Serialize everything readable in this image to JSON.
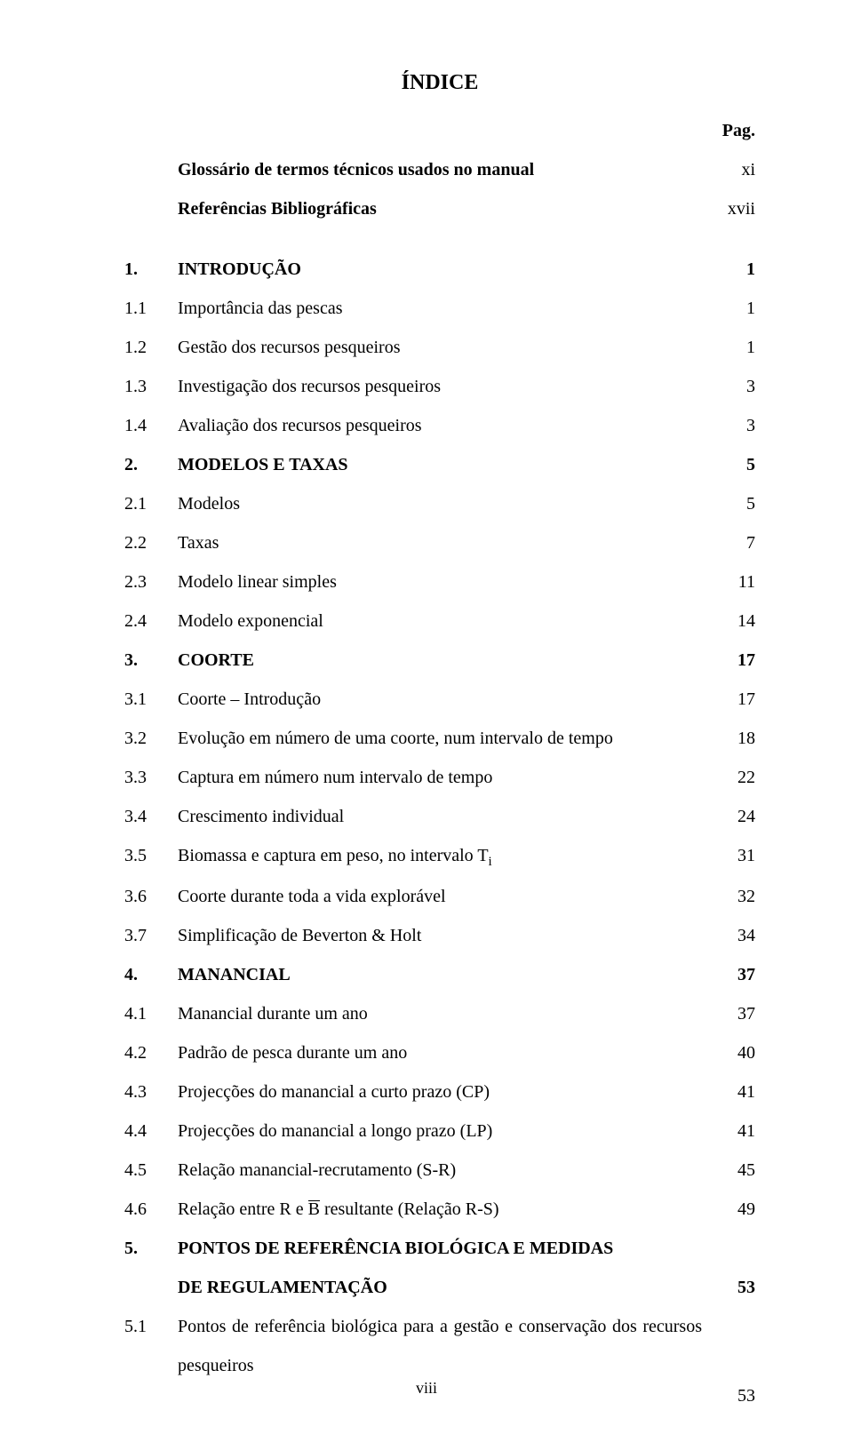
{
  "document": {
    "background_color": "#ffffff",
    "text_color": "#000000",
    "font_family": "Times New Roman",
    "title_fontsize": 24,
    "body_fontsize": 20,
    "line_height": 2.2
  },
  "title": "ÍNDICE",
  "header": {
    "pag_label": "Pag.",
    "rows": [
      {
        "label": "Glossário de termos técnicos usados no manual",
        "page": "xi"
      },
      {
        "label": "Referências Bibliográficas",
        "page": "xvii"
      }
    ]
  },
  "toc": [
    {
      "num": "1.",
      "label": "INTRODUÇÃO",
      "page": "1",
      "bold": true
    },
    {
      "num": "1.1",
      "label": "Importância das pescas",
      "page": "1",
      "bold": false
    },
    {
      "num": "1.2",
      "label": "Gestão dos recursos pesqueiros",
      "page": "1",
      "bold": false
    },
    {
      "num": "1.3",
      "label": "Investigação dos recursos pesqueiros",
      "page": "3",
      "bold": false
    },
    {
      "num": "1.4",
      "label": "Avaliação dos recursos pesqueiros",
      "page": "3",
      "bold": false
    },
    {
      "num": "2.",
      "label": "MODELOS E TAXAS",
      "page": "5",
      "bold": true
    },
    {
      "num": "2.1",
      "label": "Modelos",
      "page": "5",
      "bold": false
    },
    {
      "num": "2.2",
      "label": "Taxas",
      "page": "7",
      "bold": false
    },
    {
      "num": "2.3",
      "label": "Modelo linear simples",
      "page": "11",
      "bold": false
    },
    {
      "num": "2.4",
      "label": "Modelo exponencial",
      "page": "14",
      "bold": false
    },
    {
      "num": "3.",
      "label": "COORTE",
      "page": "17",
      "bold": true
    },
    {
      "num": "3.1",
      "label": "Coorte – Introdução",
      "page": "17",
      "bold": false
    },
    {
      "num": "3.2",
      "label": "Evolução em número de uma coorte, num intervalo de tempo",
      "page": "18",
      "bold": false
    },
    {
      "num": "3.3",
      "label": "Captura em número num intervalo de tempo",
      "page": "22",
      "bold": false
    },
    {
      "num": "3.4",
      "label": "Crescimento individual",
      "page": "24",
      "bold": false
    },
    {
      "num": "3.5",
      "label_pre": "Biomassa e captura em peso, no intervalo T",
      "label_sub": "i",
      "page": "31",
      "bold": false,
      "has_sub": true
    },
    {
      "num": "3.6",
      "label": "Coorte durante toda a vida explorável",
      "page": "32",
      "bold": false
    },
    {
      "num": "3.7",
      "label": "Simplificação de Beverton & Holt",
      "page": "34",
      "bold": false
    },
    {
      "num": "4.",
      "label": "MANANCIAL",
      "page": "37",
      "bold": true
    },
    {
      "num": "4.1",
      "label": "Manancial durante um ano",
      "page": "37",
      "bold": false
    },
    {
      "num": "4.2",
      "label": "Padrão de pesca durante um ano",
      "page": "40",
      "bold": false
    },
    {
      "num": "4.3",
      "label": "Projecções do manancial a curto prazo (CP)",
      "page": "41",
      "bold": false
    },
    {
      "num": "4.4",
      "label": "Projecções do manancial a longo prazo (LP)",
      "page": "41",
      "bold": false
    },
    {
      "num": "4.5",
      "label": "Relação manancial-recrutamento (S-R)",
      "page": "45",
      "bold": false
    },
    {
      "num": "4.6",
      "label_pre": "Relação entre R e ",
      "label_over": "B",
      "label_post": " resultante (Relação R-S)",
      "page": "49",
      "bold": false,
      "has_over": true
    },
    {
      "num": "5.",
      "label": "PONTOS DE REFERÊNCIA BIOLÓGICA E MEDIDAS",
      "label2": "DE REGULAMENTAÇÃO",
      "page": "53",
      "bold": true,
      "multiline": true
    },
    {
      "num": "5.1",
      "label": "Pontos de referência biológica para a gestão e conservação dos recursos pesqueiros",
      "page": "53",
      "bold": false,
      "justify": true,
      "page_below": true
    }
  ],
  "footer": "viii"
}
